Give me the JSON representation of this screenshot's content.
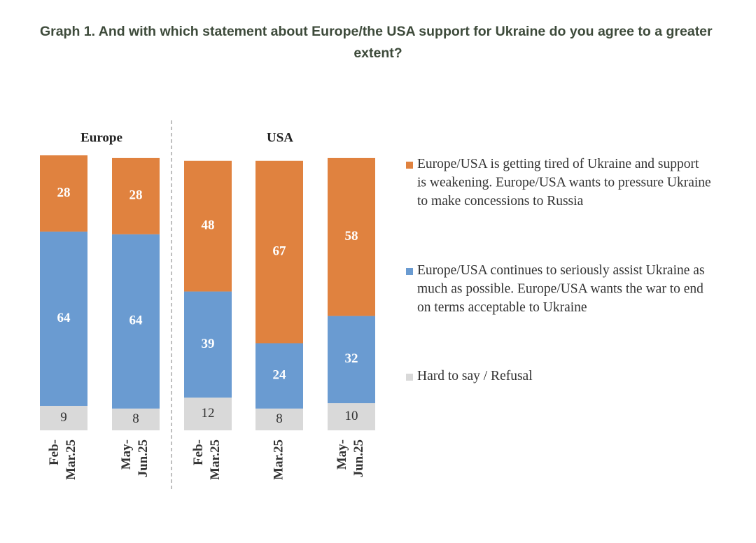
{
  "chart_data": {
    "type": "stacked_bar",
    "title": "Graph 1. And with which statement about Europe/the USA support for Ukraine do you agree to a greater extent?",
    "groups": [
      {
        "name": "Europe",
        "categories": [
          "Feb-Mar.25",
          "May-Jun.25"
        ]
      },
      {
        "name": "USA",
        "categories": [
          "Feb-Mar.25",
          "Mar.25",
          "May-Jun.25"
        ]
      }
    ],
    "series": [
      {
        "name": "Europe/USA is getting tired of Ukraine and support is weakening. Europe/USA wants to pressure Ukraine to make concessions to Russia",
        "color": "#e0823f",
        "values": [
          28,
          28,
          48,
          67,
          58
        ]
      },
      {
        "name": "Europe/USA continues to seriously assist Ukraine as much as possible. Europe/USA wants the war to end on terms acceptable to Ukraine",
        "color": "#6a9bd1",
        "values": [
          64,
          64,
          39,
          24,
          32
        ]
      },
      {
        "name": "Hard to say / Refusal",
        "color": "#d9d9d9",
        "values": [
          9,
          8,
          12,
          8,
          10
        ]
      }
    ],
    "ylim": [
      0,
      101
    ]
  }
}
